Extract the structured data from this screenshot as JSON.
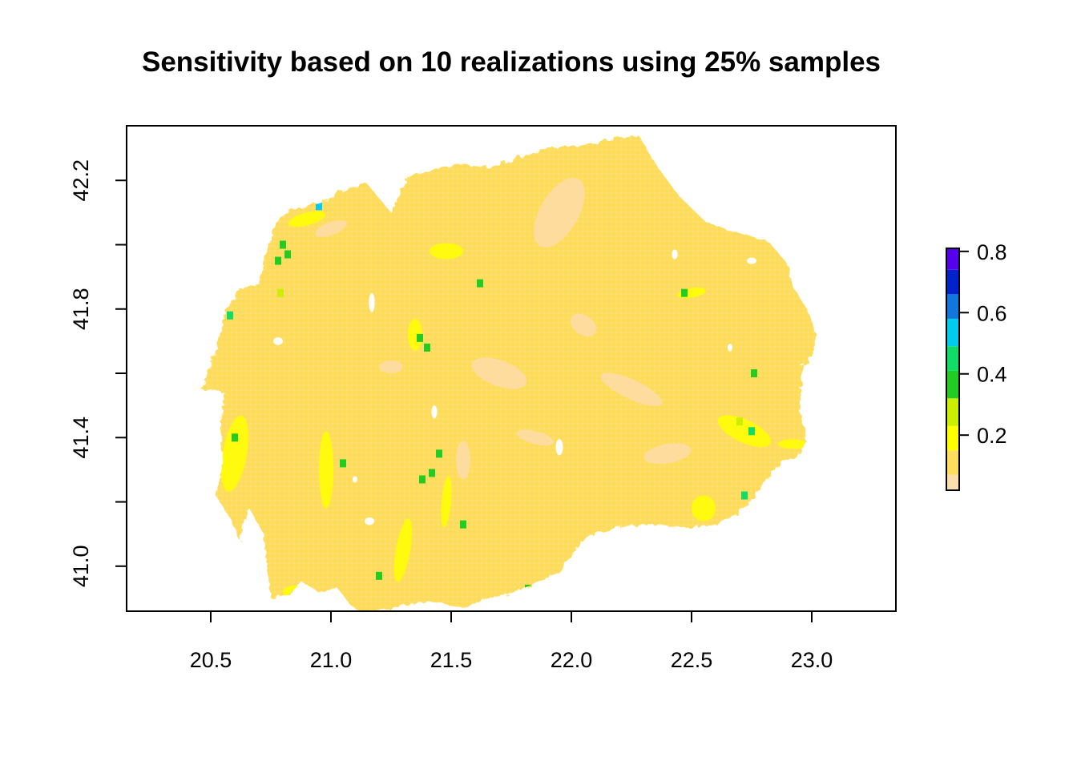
{
  "title": "Sensitivity based on 10 realizations using 25% samples",
  "colors": {
    "background": "#ffffff",
    "axis": "#000000",
    "land_base": "#FFDD5C",
    "land_low": "#FDDCAE",
    "highlight_yellow": "#FFFF00"
  },
  "chart_data": {
    "type": "heatmap",
    "title": "Sensitivity based on 10 realizations using 25% samples",
    "xlabel": "",
    "ylabel": "",
    "xlim": [
      20.15,
      23.35
    ],
    "ylim": [
      40.86,
      42.37
    ],
    "x_ticks": [
      {
        "value": 20.5,
        "label": "20.5"
      },
      {
        "value": 21.0,
        "label": "21.0"
      },
      {
        "value": 21.5,
        "label": "21.5"
      },
      {
        "value": 22.0,
        "label": "22.0"
      },
      {
        "value": 22.5,
        "label": "22.5"
      },
      {
        "value": 23.0,
        "label": "23.0"
      }
    ],
    "y_ticks": [
      {
        "value": 41.0,
        "label": "41.0"
      },
      {
        "value": 41.2,
        "label": ""
      },
      {
        "value": 41.4,
        "label": "41.4"
      },
      {
        "value": 41.6,
        "label": ""
      },
      {
        "value": 41.8,
        "label": "41.8"
      },
      {
        "value": 42.0,
        "label": ""
      },
      {
        "value": 42.2,
        "label": "42.2"
      }
    ],
    "legend": {
      "placement": "right",
      "range": [
        0.02,
        0.81
      ],
      "ticks": [
        {
          "value": 0.2,
          "label": "0.2"
        },
        {
          "value": 0.4,
          "label": "0.4"
        },
        {
          "value": 0.6,
          "label": "0.6"
        },
        {
          "value": 0.8,
          "label": "0.8"
        }
      ],
      "bins": [
        {
          "from": 0.02,
          "to": 0.07,
          "color": "#FDDCAE"
        },
        {
          "from": 0.07,
          "to": 0.15,
          "color": "#FFDD5C"
        },
        {
          "from": 0.15,
          "to": 0.23,
          "color": "#FFFF00"
        },
        {
          "from": 0.23,
          "to": 0.32,
          "color": "#CCEE00"
        },
        {
          "from": 0.32,
          "to": 0.41,
          "color": "#22CC22"
        },
        {
          "from": 0.41,
          "to": 0.49,
          "color": "#11DD66"
        },
        {
          "from": 0.49,
          "to": 0.58,
          "color": "#00CCEE"
        },
        {
          "from": 0.58,
          "to": 0.66,
          "color": "#1177DD"
        },
        {
          "from": 0.66,
          "to": 0.74,
          "color": "#0022CC"
        },
        {
          "from": 0.74,
          "to": 0.81,
          "color": "#5500EE"
        }
      ]
    },
    "region_outline_lonlat": [
      [
        20.46,
        41.55
      ],
      [
        20.56,
        41.54
      ],
      [
        20.54,
        41.45
      ],
      [
        20.55,
        41.32
      ],
      [
        20.52,
        41.22
      ],
      [
        20.58,
        41.15
      ],
      [
        20.62,
        41.08
      ],
      [
        20.66,
        41.18
      ],
      [
        20.72,
        41.1
      ],
      [
        20.75,
        40.9
      ],
      [
        20.82,
        40.91
      ],
      [
        20.88,
        40.95
      ],
      [
        20.95,
        40.92
      ],
      [
        21.03,
        40.93
      ],
      [
        21.08,
        40.88
      ],
      [
        21.12,
        40.86
      ],
      [
        21.2,
        40.86
      ],
      [
        21.3,
        40.88
      ],
      [
        21.42,
        40.89
      ],
      [
        21.56,
        40.87
      ],
      [
        21.62,
        40.89
      ],
      [
        21.72,
        40.91
      ],
      [
        21.83,
        40.94
      ],
      [
        21.95,
        40.98
      ],
      [
        22.05,
        41.09
      ],
      [
        22.18,
        41.12
      ],
      [
        22.32,
        41.13
      ],
      [
        22.48,
        41.12
      ],
      [
        22.6,
        41.13
      ],
      [
        22.68,
        41.16
      ],
      [
        22.75,
        41.2
      ],
      [
        22.8,
        41.26
      ],
      [
        22.88,
        41.33
      ],
      [
        22.95,
        41.34
      ],
      [
        22.98,
        41.4
      ],
      [
        22.95,
        41.48
      ],
      [
        22.96,
        41.62
      ],
      [
        23.0,
        41.65
      ],
      [
        23.02,
        41.72
      ],
      [
        22.98,
        41.8
      ],
      [
        22.92,
        41.87
      ],
      [
        22.9,
        41.94
      ],
      [
        22.82,
        42.01
      ],
      [
        22.68,
        42.04
      ],
      [
        22.56,
        42.07
      ],
      [
        22.45,
        42.15
      ],
      [
        22.36,
        42.24
      ],
      [
        22.28,
        42.34
      ],
      [
        22.18,
        42.33
      ],
      [
        22.05,
        42.31
      ],
      [
        21.9,
        42.3
      ],
      [
        21.78,
        42.27
      ],
      [
        21.65,
        42.24
      ],
      [
        21.55,
        42.25
      ],
      [
        21.45,
        42.24
      ],
      [
        21.32,
        42.21
      ],
      [
        21.25,
        42.1
      ],
      [
        21.15,
        42.19
      ],
      [
        21.05,
        42.17
      ],
      [
        20.96,
        42.13
      ],
      [
        20.85,
        42.11
      ],
      [
        20.78,
        42.08
      ],
      [
        20.74,
        42.0
      ],
      [
        20.7,
        41.88
      ],
      [
        20.62,
        41.86
      ],
      [
        20.56,
        41.79
      ],
      [
        20.53,
        41.7
      ],
      [
        20.5,
        41.62
      ],
      [
        20.46,
        41.55
      ]
    ],
    "highlight_cells": [
      {
        "lon": 20.8,
        "lat": 42.0,
        "value": 0.4
      },
      {
        "lon": 20.82,
        "lat": 41.97,
        "value": 0.38
      },
      {
        "lon": 20.78,
        "lat": 41.95,
        "value": 0.36
      },
      {
        "lon": 20.79,
        "lat": 41.85,
        "value": 0.3
      },
      {
        "lon": 20.58,
        "lat": 41.78,
        "value": 0.42
      },
      {
        "lon": 20.95,
        "lat": 42.12,
        "value": 0.5
      },
      {
        "lon": 21.37,
        "lat": 41.71,
        "value": 0.37
      },
      {
        "lon": 21.4,
        "lat": 41.68,
        "value": 0.35
      },
      {
        "lon": 22.75,
        "lat": 41.42,
        "value": 0.45
      },
      {
        "lon": 22.7,
        "lat": 41.45,
        "value": 0.3
      },
      {
        "lon": 22.72,
        "lat": 41.22,
        "value": 0.42
      },
      {
        "lon": 22.47,
        "lat": 41.85,
        "value": 0.38
      },
      {
        "lon": 21.42,
        "lat": 41.29,
        "value": 0.4
      },
      {
        "lon": 21.38,
        "lat": 41.27,
        "value": 0.36
      },
      {
        "lon": 21.2,
        "lat": 40.97,
        "value": 0.38
      },
      {
        "lon": 21.82,
        "lat": 40.93,
        "value": 0.36
      },
      {
        "lon": 20.6,
        "lat": 41.4,
        "value": 0.34
      },
      {
        "lon": 21.45,
        "lat": 41.35,
        "value": 0.33
      },
      {
        "lon": 21.05,
        "lat": 41.32,
        "value": 0.35
      },
      {
        "lon": 22.76,
        "lat": 41.6,
        "value": 0.33
      },
      {
        "lon": 21.62,
        "lat": 41.88,
        "value": 0.36
      },
      {
        "lon": 21.55,
        "lat": 41.13,
        "value": 0.35
      }
    ],
    "yellow_patches": [
      {
        "lon": 22.72,
        "lat": 41.42,
        "rx": 0.12,
        "ry": 0.035,
        "rot": 25
      },
      {
        "lon": 22.55,
        "lat": 41.18,
        "rx": 0.05,
        "ry": 0.04,
        "rot": 0
      },
      {
        "lon": 20.6,
        "lat": 41.35,
        "rx": 0.05,
        "ry": 0.12,
        "rot": 10
      },
      {
        "lon": 21.35,
        "lat": 41.72,
        "rx": 0.03,
        "ry": 0.05,
        "rot": 0
      },
      {
        "lon": 22.5,
        "lat": 41.85,
        "rx": 0.06,
        "ry": 0.015,
        "rot": -10
      },
      {
        "lon": 22.92,
        "lat": 41.38,
        "rx": 0.06,
        "ry": 0.015,
        "rot": 0
      },
      {
        "lon": 20.9,
        "lat": 42.08,
        "rx": 0.08,
        "ry": 0.02,
        "rot": -15
      },
      {
        "lon": 21.48,
        "lat": 41.98,
        "rx": 0.07,
        "ry": 0.025,
        "rot": 0
      },
      {
        "lon": 20.85,
        "lat": 40.92,
        "rx": 0.05,
        "ry": 0.02,
        "rot": 0
      },
      {
        "lon": 21.3,
        "lat": 41.05,
        "rx": 0.03,
        "ry": 0.1,
        "rot": 10
      },
      {
        "lon": 21.48,
        "lat": 41.2,
        "rx": 0.02,
        "ry": 0.08,
        "rot": 5
      },
      {
        "lon": 20.98,
        "lat": 41.3,
        "rx": 0.03,
        "ry": 0.12,
        "rot": 0
      }
    ],
    "pale_patches": [
      {
        "lon": 21.95,
        "lat": 42.1,
        "rx": 0.08,
        "ry": 0.12,
        "rot": 30
      },
      {
        "lon": 21.7,
        "lat": 41.6,
        "rx": 0.12,
        "ry": 0.04,
        "rot": 20
      },
      {
        "lon": 22.25,
        "lat": 41.55,
        "rx": 0.14,
        "ry": 0.03,
        "rot": 25
      },
      {
        "lon": 21.55,
        "lat": 41.33,
        "rx": 0.03,
        "ry": 0.06,
        "rot": 0
      },
      {
        "lon": 22.4,
        "lat": 41.35,
        "rx": 0.1,
        "ry": 0.03,
        "rot": -10
      },
      {
        "lon": 21.85,
        "lat": 41.4,
        "rx": 0.08,
        "ry": 0.02,
        "rot": 15
      },
      {
        "lon": 21.0,
        "lat": 42.05,
        "rx": 0.07,
        "ry": 0.02,
        "rot": -20
      },
      {
        "lon": 22.05,
        "lat": 41.75,
        "rx": 0.06,
        "ry": 0.03,
        "rot": 35
      },
      {
        "lon": 21.25,
        "lat": 41.62,
        "rx": 0.05,
        "ry": 0.02,
        "rot": 0
      }
    ],
    "holes": [
      {
        "lon": 21.17,
        "lat": 41.82,
        "rx": 0.012,
        "ry": 0.03
      },
      {
        "lon": 20.78,
        "lat": 41.7,
        "rx": 0.02,
        "ry": 0.012
      },
      {
        "lon": 21.95,
        "lat": 41.37,
        "rx": 0.015,
        "ry": 0.025
      },
      {
        "lon": 21.43,
        "lat": 41.48,
        "rx": 0.012,
        "ry": 0.02
      },
      {
        "lon": 21.16,
        "lat": 41.14,
        "rx": 0.02,
        "ry": 0.012
      },
      {
        "lon": 22.43,
        "lat": 41.97,
        "rx": 0.012,
        "ry": 0.015
      },
      {
        "lon": 22.75,
        "lat": 41.95,
        "rx": 0.02,
        "ry": 0.01
      },
      {
        "lon": 21.1,
        "lat": 41.27,
        "rx": 0.01,
        "ry": 0.01
      },
      {
        "lon": 22.66,
        "lat": 41.68,
        "rx": 0.01,
        "ry": 0.012
      }
    ]
  }
}
